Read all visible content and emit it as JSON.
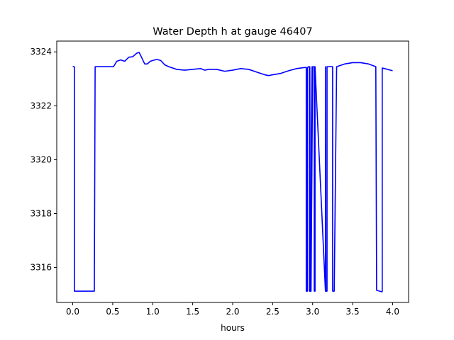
{
  "chart_data": {
    "type": "line",
    "title": "Water Depth h at gauge 46407",
    "xlabel": "hours",
    "ylabel": "",
    "xlim": [
      -0.2,
      4.2
    ],
    "ylim": [
      3314.7,
      3324.4
    ],
    "xticks": [
      0.0,
      0.5,
      1.0,
      1.5,
      2.0,
      2.5,
      3.0,
      3.5,
      4.0
    ],
    "xtick_labels": [
      "0.0",
      "0.5",
      "1.0",
      "1.5",
      "2.0",
      "2.5",
      "3.0",
      "3.5",
      "4.0"
    ],
    "yticks": [
      3316,
      3318,
      3320,
      3322,
      3324
    ],
    "ytick_labels": [
      "3316",
      "3318",
      "3320",
      "3322",
      "3324"
    ],
    "grid": false,
    "series": [
      {
        "color": "#0000ff",
        "x": [
          0.0,
          0.02,
          0.02,
          0.27,
          0.28,
          0.51,
          0.55,
          0.6,
          0.65,
          0.7,
          0.75,
          0.8,
          0.83,
          0.86,
          0.9,
          0.93,
          0.97,
          1.0,
          1.05,
          1.1,
          1.15,
          1.2,
          1.3,
          1.4,
          1.5,
          1.6,
          1.65,
          1.7,
          1.8,
          1.9,
          2.0,
          2.1,
          2.2,
          2.3,
          2.4,
          2.45,
          2.5,
          2.6,
          2.7,
          2.8,
          2.9,
          2.92,
          2.92,
          2.935,
          2.935,
          2.95,
          2.96,
          2.96,
          2.97,
          2.98,
          2.98,
          3.0,
          3.01,
          3.02,
          3.02,
          3.03,
          3.03,
          3.16,
          3.16,
          3.165,
          3.18,
          3.18,
          3.25,
          3.25,
          3.27,
          3.3,
          3.4,
          3.5,
          3.6,
          3.7,
          3.79,
          3.8,
          3.8,
          3.86,
          3.87,
          3.87,
          3.9,
          4.0
        ],
        "y": [
          3323.45,
          3323.45,
          3315.12,
          3315.12,
          3323.45,
          3323.45,
          3323.65,
          3323.7,
          3323.65,
          3323.8,
          3323.82,
          3323.95,
          3323.98,
          3323.8,
          3323.55,
          3323.55,
          3323.65,
          3323.68,
          3323.72,
          3323.68,
          3323.52,
          3323.45,
          3323.35,
          3323.32,
          3323.35,
          3323.38,
          3323.32,
          3323.35,
          3323.35,
          3323.28,
          3323.32,
          3323.38,
          3323.35,
          3323.25,
          3323.15,
          3323.12,
          3323.15,
          3323.2,
          3323.3,
          3323.38,
          3323.42,
          3323.42,
          3315.12,
          3315.12,
          3323.42,
          3323.45,
          3323.45,
          3315.12,
          3315.12,
          3323.45,
          3315.12,
          3323.45,
          3323.45,
          3323.45,
          3315.12,
          3315.12,
          3323.45,
          3315.12,
          3323.45,
          3315.12,
          3315.12,
          3323.45,
          3323.45,
          3315.12,
          3315.12,
          3323.45,
          3323.55,
          3323.6,
          3323.6,
          3323.55,
          3323.45,
          3315.15,
          3315.15,
          3315.1,
          3315.1,
          3323.4,
          3323.38,
          3323.3
        ]
      }
    ]
  }
}
